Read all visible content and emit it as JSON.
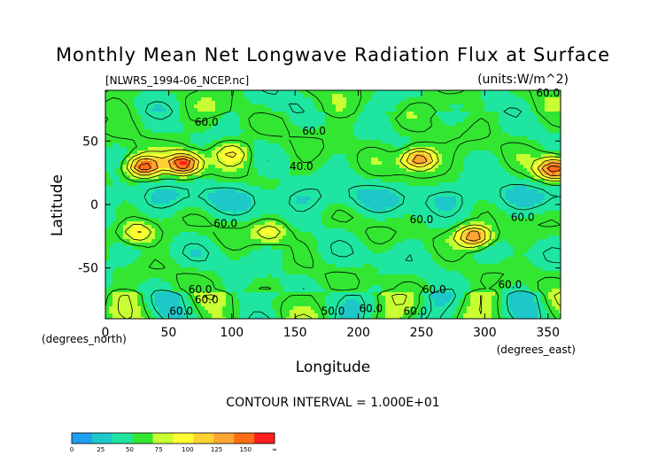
{
  "chart_data": {
    "type": "heatmap",
    "title": "Monthly Mean Net Longwave Radiation Flux at Surface",
    "subtitle": "[NLWRS_1994-06_NCEP.nc]",
    "units_label": "(units:W/m^2)",
    "xlabel": "Longitude",
    "ylabel": "Latitude",
    "x_unit_label": "(degrees_east)",
    "y_unit_label": "(degrees_north)",
    "xlim": [
      0,
      360
    ],
    "ylim": [
      -90,
      90
    ],
    "x_ticks": [
      0,
      50,
      100,
      150,
      200,
      250,
      300,
      350
    ],
    "y_ticks": [
      50,
      0,
      -50
    ],
    "contour_interval_text": "CONTOUR INTERVAL = 1.000E+01",
    "colorbar": {
      "ticks": [
        "0",
        "25",
        "50",
        "75",
        "100",
        "125",
        "150",
        "∞"
      ],
      "colors": [
        "#1ea0f0",
        "#1ec8c8",
        "#1ee6a0",
        "#32e632",
        "#c8ff32",
        "#ffff32",
        "#ffd232",
        "#ffa532",
        "#ff6e14",
        "#ff1e1e"
      ]
    },
    "contour_labels": [
      {
        "lon": 350,
        "lat": 88,
        "text": "60.0"
      },
      {
        "lon": 80,
        "lat": 65,
        "text": "60.0"
      },
      {
        "lon": 165,
        "lat": 58,
        "text": "60.0"
      },
      {
        "lon": 155,
        "lat": 30,
        "text": "40.0"
      },
      {
        "lon": 95,
        "lat": -15,
        "text": "60.0"
      },
      {
        "lon": 250,
        "lat": -12,
        "text": "60.0"
      },
      {
        "lon": 330,
        "lat": -10,
        "text": "60.0"
      },
      {
        "lon": 320,
        "lat": -63,
        "text": "60.0"
      },
      {
        "lon": 260,
        "lat": -67,
        "text": "60.0"
      },
      {
        "lon": 75,
        "lat": -67,
        "text": "60.0"
      },
      {
        "lon": 80,
        "lat": -75,
        "text": "60.0"
      },
      {
        "lon": 210,
        "lat": -82,
        "text": "60.0"
      },
      {
        "lon": 60,
        "lat": -84,
        "text": "60.0"
      },
      {
        "lon": 180,
        "lat": -84,
        "text": "50.0"
      },
      {
        "lon": 245,
        "lat": -84,
        "text": "60.0"
      }
    ],
    "hotspots_W_m2": [
      {
        "lon": 30,
        "lat": 30,
        "value": 160
      },
      {
        "lon": 62,
        "lat": 32,
        "value": 165
      },
      {
        "lon": 248,
        "lat": 36,
        "value": 150
      },
      {
        "lon": 355,
        "lat": 28,
        "value": 160
      },
      {
        "lon": 292,
        "lat": -25,
        "value": 150
      },
      {
        "lon": 130,
        "lat": -22,
        "value": 100
      },
      {
        "lon": 25,
        "lat": -22,
        "value": 110
      },
      {
        "lon": 100,
        "lat": 40,
        "value": 100
      }
    ]
  }
}
